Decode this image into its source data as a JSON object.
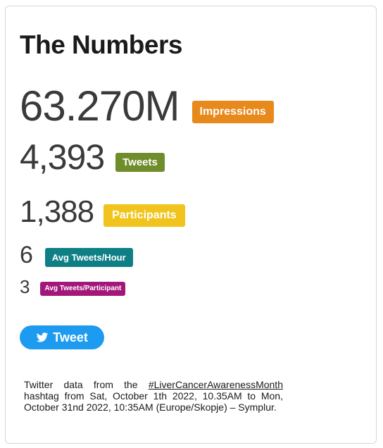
{
  "card": {
    "title": "The Numbers",
    "stats": [
      {
        "value": "63.270M",
        "label": "Impressions",
        "color": "#e8891c"
      },
      {
        "value": "4,393",
        "label": "Tweets",
        "color": "#6f8d2a"
      },
      {
        "value": "1,388",
        "label": "Participants",
        "color": "#f0c41c"
      },
      {
        "value": "6",
        "label": "Avg Tweets/Hour",
        "color": "#0f7f86"
      },
      {
        "value": "3",
        "label": "Avg Tweets/Participant",
        "color": "#a3177b"
      }
    ],
    "tweet_button": {
      "label": "Tweet",
      "icon": "twitter-bird-icon",
      "color": "#1d9bf0"
    },
    "caption": {
      "prefix": "Twitter data from the",
      "hashtag": "#LiverCancerAwarenessMonth",
      "suffix": "hashtag from Sat, October 1th 2022, 10.35AM to Mon, October 31nd 2022, 10:35AM (Europe/Skopje) – Symplur."
    }
  }
}
